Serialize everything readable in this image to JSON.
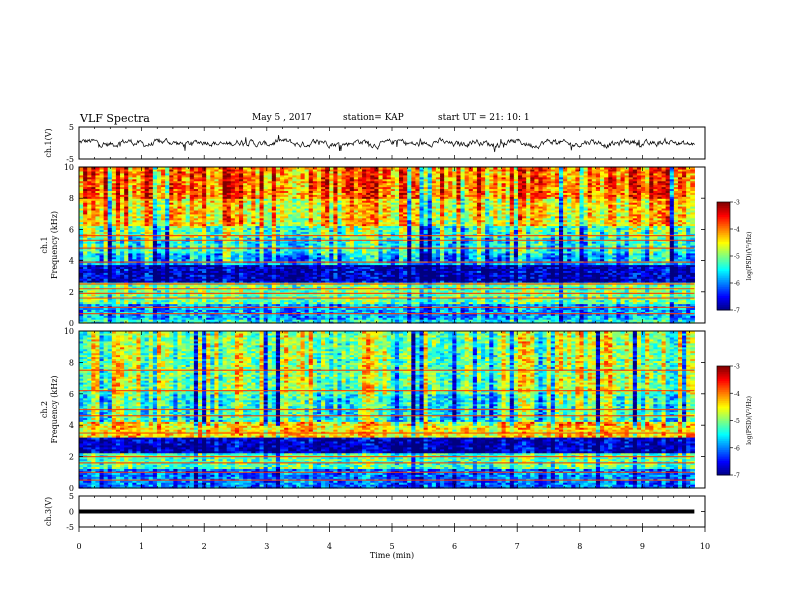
{
  "header": {
    "title": "VLF Spectra",
    "date": "May 5 , 2017",
    "station": "station= KAP",
    "start": "start UT = 21: 10: 1"
  },
  "chart_data": [
    {
      "type": "line",
      "panel": "ch1-waveform",
      "ylabel": "ch.1(V)",
      "ylim": [
        -5,
        5
      ],
      "yticks": [
        -5,
        5
      ],
      "xlim": [
        0,
        10
      ],
      "series": [
        {
          "shape": "noisy waveform",
          "x_range": [
            0,
            9.83
          ],
          "y_range": [
            -2.8,
            2.5
          ],
          "baseline": 0
        }
      ]
    },
    {
      "type": "heatmap",
      "panel": "ch1-spectrogram",
      "ylabel_top": "ch.1",
      "ylabel": "Frequency (kHz)",
      "ylim": [
        0,
        10
      ],
      "yticks": [
        0,
        2,
        4,
        6,
        8,
        10
      ],
      "xlim": [
        0,
        10
      ],
      "x_extent": [
        0,
        9.83
      ],
      "bands": [
        {
          "f": [
            8,
            10
          ],
          "level": -3.8
        },
        {
          "f": [
            6.3,
            8
          ],
          "level": -4.3
        },
        {
          "f": [
            5.5,
            6.3
          ],
          "level": -5.0
        },
        {
          "f": [
            4.5,
            5.5
          ],
          "level": -5.3
        },
        {
          "f": [
            3.8,
            4.5
          ],
          "level": -5.7
        },
        {
          "f": [
            2.6,
            3.8
          ],
          "level": -6.7
        },
        {
          "f": [
            1.3,
            2.6
          ],
          "level": -5.0
        },
        {
          "f": [
            0.3,
            1.3
          ],
          "level": -5.8
        },
        {
          "f": [
            0,
            0.3
          ],
          "level": -5.4
        }
      ],
      "lines_khz": [
        5.6,
        5.3,
        4.8,
        3.9,
        2.5,
        2.2,
        1.9,
        1.6,
        1.0,
        0.6
      ],
      "colorbar": {
        "label": "log(PSD)(V²/Hz)",
        "range": [
          -7,
          -3
        ],
        "ticks": [
          -7,
          -6,
          -5,
          -4,
          -3
        ]
      }
    },
    {
      "type": "heatmap",
      "panel": "ch2-spectrogram",
      "ylabel_top": "ch.2",
      "ylabel": "Frequency (kHz)",
      "ylim": [
        0,
        10
      ],
      "yticks": [
        0,
        2,
        4,
        6,
        8,
        10
      ],
      "xlim": [
        0,
        10
      ],
      "x_extent": [
        0,
        9.83
      ],
      "bands": [
        {
          "f": [
            6,
            10
          ],
          "level": -4.8
        },
        {
          "f": [
            4.2,
            6
          ],
          "level": -5.2
        },
        {
          "f": [
            3.3,
            4.2
          ],
          "level": -4.3
        },
        {
          "f": [
            2.3,
            3.3
          ],
          "level": -6.7
        },
        {
          "f": [
            1.3,
            2.3
          ],
          "level": -5.1
        },
        {
          "f": [
            0,
            1.3
          ],
          "level": -6.0
        }
      ],
      "lines_khz": [
        7.5,
        6.2,
        5.0,
        4.6,
        3.5,
        2.0,
        1.6,
        1.0,
        0.5
      ],
      "colorbar": {
        "label": "log(PSD)(V²/Hz)",
        "range": [
          -7,
          -3
        ],
        "ticks": [
          -7,
          -6,
          -5,
          -4,
          -3
        ]
      }
    },
    {
      "type": "line",
      "panel": "ch3-waveform",
      "ylabel": "ch.3(V)",
      "ylim": [
        -5,
        5
      ],
      "yticks": [
        -5,
        0,
        5
      ],
      "xlim": [
        0,
        10
      ],
      "series": [
        {
          "shape": "flat",
          "x_range": [
            0,
            9.83
          ],
          "y": 0
        }
      ]
    },
    {
      "type": "axis",
      "panel": "time-axis",
      "xlabel": "Time (min)",
      "xticks": [
        0,
        1,
        2,
        3,
        4,
        5,
        6,
        7,
        8,
        9,
        10
      ]
    }
  ]
}
